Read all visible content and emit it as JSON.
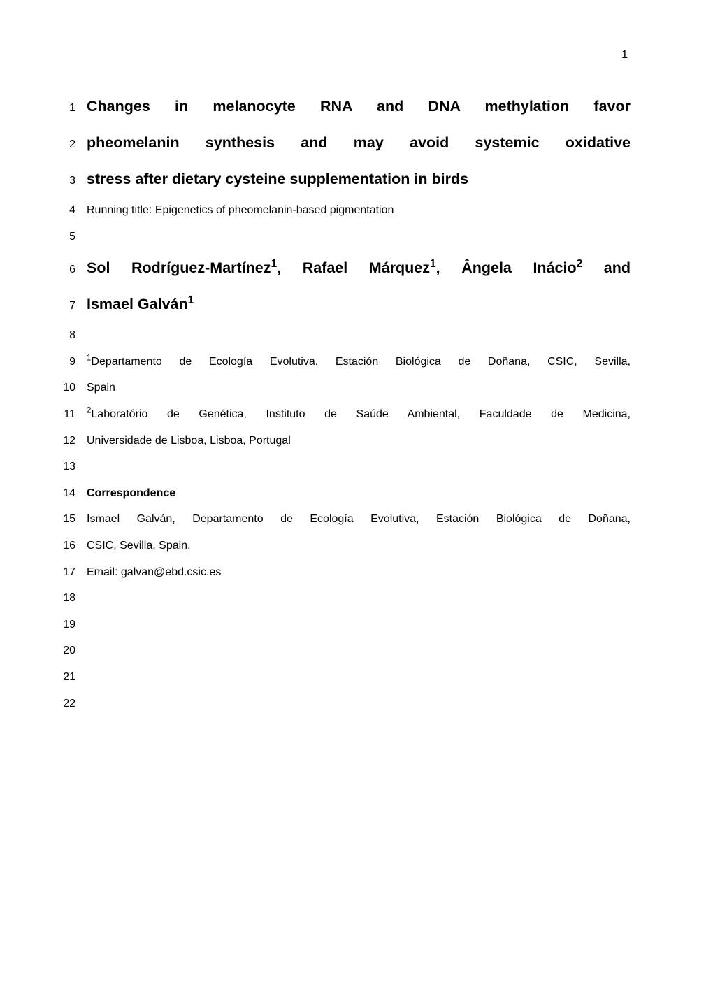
{
  "page_number": "1",
  "title": {
    "l1": {
      "num": "1",
      "text": "Changes in melanocyte RNA and DNA methylation favor"
    },
    "l2": {
      "num": "2",
      "text": "pheomelanin synthesis and may avoid systemic oxidative"
    },
    "l3": {
      "num": "3",
      "text": "stress after dietary cysteine supplementation in birds"
    }
  },
  "running": {
    "num": "4",
    "text": "Running title: Epigenetics of pheomelanin-based pigmentation"
  },
  "blank5": {
    "num": "5"
  },
  "authors": {
    "l1": {
      "num": "6",
      "a1_name": "Sol Rodríguez-Martínez",
      "a1_sup": "1",
      "sep1": ", ",
      "a2_name": "Rafael Márquez",
      "a2_sup": "1",
      "sep2": ", ",
      "a3_name": "Ângela Inácio",
      "a3_sup": "2",
      "tail": " and"
    },
    "l2": {
      "num": "7",
      "a4_name": "Ismael Galván",
      "a4_sup": "1"
    }
  },
  "blank8": {
    "num": "8"
  },
  "affil1": {
    "l1": {
      "num": "9",
      "sup": "1",
      "text": "Departamento de Ecología Evolutiva, Estación Biológica de Doñana, CSIC, Sevilla,"
    },
    "l2": {
      "num": "10",
      "text": "Spain"
    }
  },
  "affil2": {
    "l1": {
      "num": "11",
      "sup": "2",
      "text": "Laboratório de Genética, Instituto de Saúde Ambiental, Faculdade de Medicina,"
    },
    "l2": {
      "num": "12",
      "text": "Universidade de Lisboa, Lisboa, Portugal"
    }
  },
  "blank13": {
    "num": "13"
  },
  "corr_head": {
    "num": "14",
    "text": "Correspondence"
  },
  "corr1": {
    "num": "15",
    "text": "Ismael Galván, Departamento de Ecología Evolutiva, Estación Biológica de Doñana,"
  },
  "corr2": {
    "num": "16",
    "text": "CSIC, Sevilla, Spain."
  },
  "email": {
    "num": "17",
    "text": "Email: galvan@ebd.csic.es"
  },
  "blank18": {
    "num": "18"
  },
  "blank19": {
    "num": "19"
  },
  "blank20": {
    "num": "20"
  },
  "blank21": {
    "num": "21"
  },
  "blank22": {
    "num": "22"
  }
}
